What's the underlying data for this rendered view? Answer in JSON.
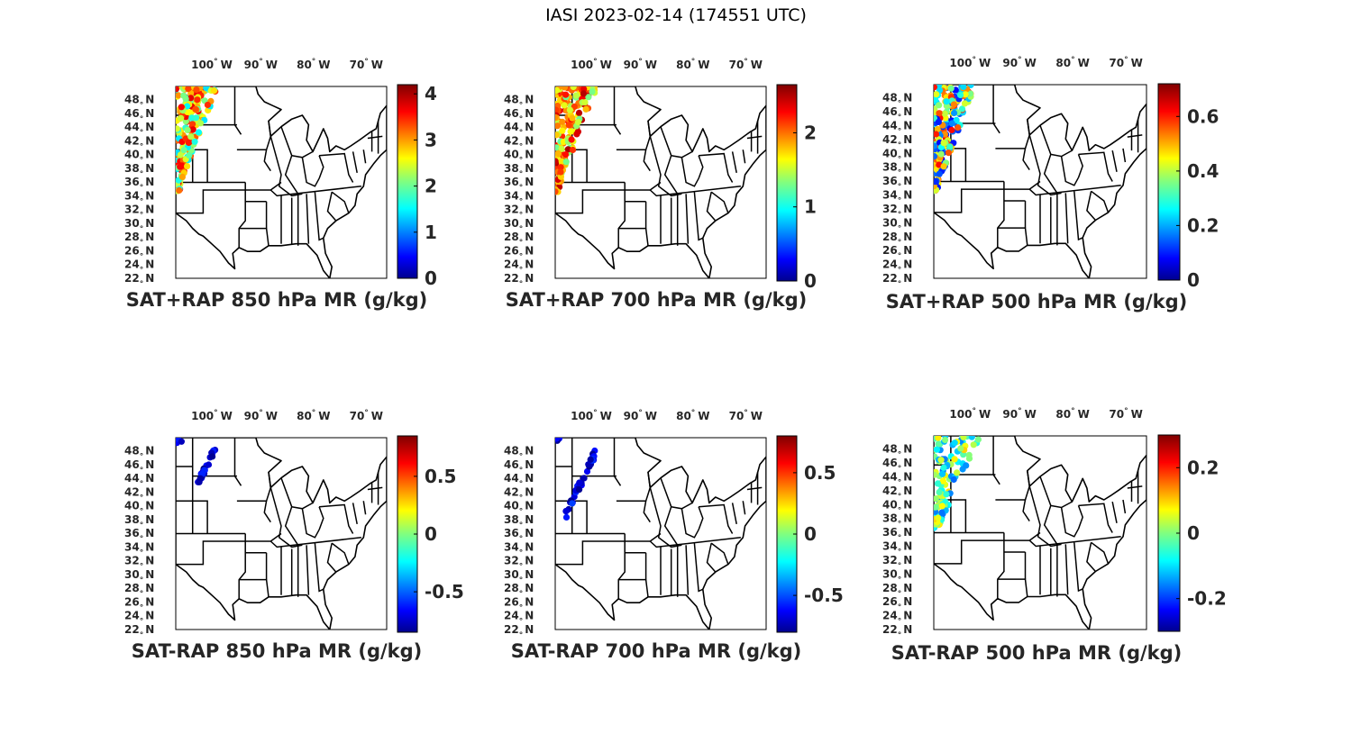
{
  "figure": {
    "title": "IASI 2023-02-14 (174551 UTC)"
  },
  "map_ticks": {
    "lon": [
      {
        "deg": 100,
        "label": "100",
        "dir": "W"
      },
      {
        "deg": 90,
        "label": "90",
        "dir": "W"
      },
      {
        "deg": 80,
        "label": "80",
        "dir": "W"
      },
      {
        "deg": 70,
        "label": "70",
        "dir": "W"
      }
    ],
    "lat": [
      {
        "deg": 48,
        "label": "48",
        "dir": "N"
      },
      {
        "deg": 46,
        "label": "46",
        "dir": "N"
      },
      {
        "deg": 44,
        "label": "44",
        "dir": "N"
      },
      {
        "deg": 42,
        "label": "42",
        "dir": "N"
      },
      {
        "deg": 40,
        "label": "40",
        "dir": "N"
      },
      {
        "deg": 38,
        "label": "38",
        "dir": "N"
      },
      {
        "deg": 36,
        "label": "36",
        "dir": "N"
      },
      {
        "deg": 34,
        "label": "34",
        "dir": "N"
      },
      {
        "deg": 32,
        "label": "32",
        "dir": "N"
      },
      {
        "deg": 30,
        "label": "30",
        "dir": "N"
      },
      {
        "deg": 28,
        "label": "28",
        "dir": "N"
      },
      {
        "deg": 26,
        "label": "26",
        "dir": "N"
      },
      {
        "deg": 24,
        "label": "24",
        "dir": "N"
      },
      {
        "deg": 22,
        "label": "22",
        "dir": "N"
      }
    ],
    "degree_symbol": "°"
  },
  "colormap": "jet",
  "panels": [
    {
      "id": "sat-plus-rap-850",
      "title": "SAT+RAP 850 hPa MR (g/kg)",
      "clim": [
        0,
        4.2
      ],
      "cbar_ticks": [
        {
          "value": 0,
          "label": "0"
        },
        {
          "value": 1,
          "label": "1"
        },
        {
          "value": 2,
          "label": "2"
        },
        {
          "value": 3,
          "label": "3"
        },
        {
          "value": 4,
          "label": "4"
        }
      ],
      "swath": {
        "type": "wide",
        "seed": 11,
        "count": 190,
        "bias": 0.62,
        "spread": 0.28
      }
    },
    {
      "id": "sat-plus-rap-700",
      "title": "SAT+RAP 700 hPa MR (g/kg)",
      "clim": [
        0,
        2.65
      ],
      "cbar_ticks": [
        {
          "value": 0,
          "label": "0"
        },
        {
          "value": 1,
          "label": "1"
        },
        {
          "value": 2,
          "label": "2"
        }
      ],
      "swath": {
        "type": "wide",
        "seed": 23,
        "count": 210,
        "bias": 0.72,
        "spread": 0.25
      }
    },
    {
      "id": "sat-plus-rap-500",
      "title": "SAT+RAP 500 hPa MR (g/kg)",
      "clim": [
        0,
        0.72
      ],
      "cbar_ticks": [
        {
          "value": 0,
          "label": "0"
        },
        {
          "value": 0.2,
          "label": "0.2"
        },
        {
          "value": 0.4,
          "label": "0.4"
        },
        {
          "value": 0.6,
          "label": "0.6"
        }
      ],
      "swath": {
        "type": "wide",
        "seed": 37,
        "count": 200,
        "bias": 0.5,
        "spread": 0.38
      }
    },
    {
      "id": "sat-minus-rap-850",
      "title": "SAT-RAP 850 hPa MR (g/kg)",
      "clim": [
        -0.85,
        0.85
      ],
      "cbar_ticks": [
        {
          "value": -0.5,
          "label": "-0.5"
        },
        {
          "value": 0,
          "label": "0"
        },
        {
          "value": 0.5,
          "label": "0.5"
        }
      ],
      "swath": {
        "type": "narrow850",
        "seed": 41,
        "count": 26,
        "bias": 0.08,
        "spread": 0.08
      }
    },
    {
      "id": "sat-minus-rap-700",
      "title": "SAT-RAP 700 hPa MR (g/kg)",
      "clim": [
        -0.8,
        0.8
      ],
      "cbar_ticks": [
        {
          "value": -0.5,
          "label": "-0.5"
        },
        {
          "value": 0,
          "label": "0"
        },
        {
          "value": 0.5,
          "label": "0.5"
        }
      ],
      "swath": {
        "type": "narrow700",
        "seed": 53,
        "count": 40,
        "bias": 0.1,
        "spread": 0.1
      }
    },
    {
      "id": "sat-minus-rap-500",
      "title": "SAT-RAP 500 hPa MR (g/kg)",
      "clim": [
        -0.3,
        0.3
      ],
      "cbar_ticks": [
        {
          "value": -0.2,
          "label": "-0.2"
        },
        {
          "value": 0,
          "label": "0"
        },
        {
          "value": 0.2,
          "label": "0.2"
        }
      ],
      "swath": {
        "type": "wide500diff",
        "seed": 67,
        "count": 120,
        "bias": 0.45,
        "spread": 0.22
      }
    }
  ]
}
